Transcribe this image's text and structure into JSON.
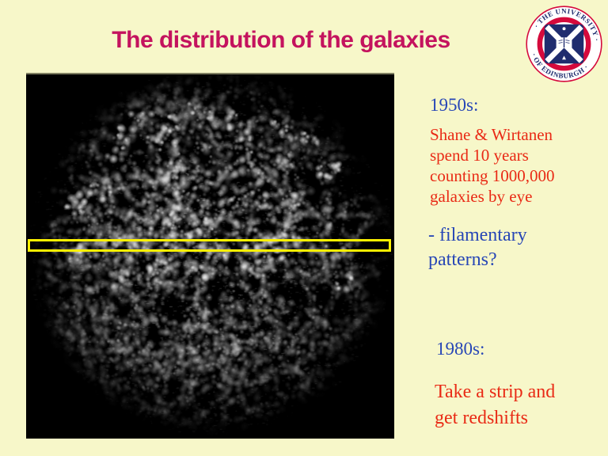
{
  "slide": {
    "title": "The distribution of the galaxies",
    "colors": {
      "background": "#F7F7C9",
      "title": "#C4135E",
      "heading_blue": "#2746B6",
      "body_red": "#E92A15",
      "highlight_yellow": "#FDF100",
      "crest_red": "#D50A3C",
      "crest_navy": "#1F2C6E"
    }
  },
  "logo": {
    "alt": "The University of Edinburgh crest",
    "arc_top_text": "· THE UNIVERSITY ·",
    "arc_bottom_text": "· OF EDINBURGH ·"
  },
  "galaxy_map": {
    "description": "Black square map of galaxy counts: white filamentary clouds of a million galaxies forming a roughly circular field on black",
    "highlight": "yellow rectangle marking a horizontal strip across the map"
  },
  "annotations": {
    "era1": {
      "heading": "1950s:",
      "body": "Shane & Wirtanen\nspend 10 years\ncounting 1000,000\ngalaxies by eye"
    },
    "filamentary": "- filamentary\npatterns?",
    "era2": {
      "heading": "1980s:",
      "body": "Take a strip and\nget redshifts"
    }
  }
}
